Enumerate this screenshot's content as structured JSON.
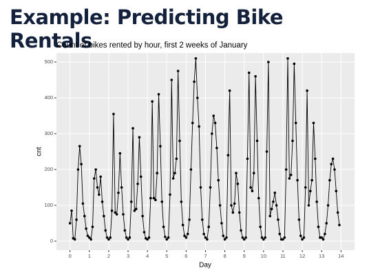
{
  "slide": {
    "title": "Example: Predicting Bike Rentals"
  },
  "chart_data": {
    "type": "line",
    "title": "Count of bikes rented by hour, first 2 weeks of January",
    "xlabel": "Day",
    "ylabel": "cnt",
    "color": "#000000",
    "grid": true,
    "xlim": [
      -0.7,
      14.7
    ],
    "ylim": [
      -25,
      525
    ],
    "xticks": [
      0,
      1,
      2,
      3,
      4,
      5,
      6,
      7,
      8,
      9,
      10,
      11,
      12,
      13,
      14
    ],
    "yticks": [
      0,
      100,
      200,
      300,
      400,
      500
    ],
    "x": [
      0,
      0.083,
      0.167,
      0.25,
      0.333,
      0.417,
      0.5,
      0.583,
      0.667,
      0.75,
      0.833,
      0.917,
      1,
      1.083,
      1.167,
      1.25,
      1.333,
      1.417,
      1.5,
      1.583,
      1.667,
      1.75,
      1.833,
      1.917,
      2,
      2.083,
      2.167,
      2.25,
      2.333,
      2.417,
      2.5,
      2.583,
      2.667,
      2.75,
      2.833,
      2.917,
      3,
      3.083,
      3.167,
      3.25,
      3.333,
      3.417,
      3.5,
      3.583,
      3.667,
      3.75,
      3.833,
      3.917,
      4,
      4.083,
      4.167,
      4.25,
      4.333,
      4.417,
      4.5,
      4.583,
      4.667,
      4.75,
      4.833,
      4.917,
      5,
      5.083,
      5.167,
      5.25,
      5.333,
      5.417,
      5.5,
      5.583,
      5.667,
      5.75,
      5.833,
      5.917,
      6,
      6.083,
      6.167,
      6.25,
      6.333,
      6.417,
      6.5,
      6.583,
      6.667,
      6.75,
      6.833,
      6.917,
      7,
      7.083,
      7.167,
      7.25,
      7.333,
      7.417,
      7.5,
      7.583,
      7.667,
      7.75,
      7.833,
      7.917,
      8,
      8.083,
      8.167,
      8.25,
      8.333,
      8.417,
      8.5,
      8.583,
      8.667,
      8.75,
      8.833,
      8.917,
      9,
      9.083,
      9.167,
      9.25,
      9.333,
      9.417,
      9.5,
      9.583,
      9.667,
      9.75,
      9.833,
      9.917,
      10,
      10.083,
      10.167,
      10.25,
      10.333,
      10.417,
      10.5,
      10.583,
      10.667,
      10.75,
      10.833,
      10.917,
      11,
      11.083,
      11.167,
      11.25,
      11.333,
      11.417,
      11.5,
      11.583,
      11.667,
      11.75,
      11.833,
      11.917,
      12,
      12.083,
      12.167,
      12.25,
      12.333,
      12.417,
      12.5,
      12.583,
      12.667,
      12.75,
      12.833,
      12.917,
      13,
      13.083,
      13.167,
      13.25,
      13.333,
      13.417,
      13.5,
      13.583,
      13.667,
      13.75,
      13.833,
      13.917
    ],
    "values": [
      50,
      85,
      8,
      5,
      60,
      200,
      265,
      215,
      105,
      70,
      35,
      15,
      10,
      5,
      40,
      175,
      200,
      150,
      130,
      180,
      110,
      70,
      30,
      10,
      5,
      10,
      85,
      355,
      80,
      75,
      135,
      245,
      150,
      75,
      30,
      10,
      5,
      10,
      110,
      315,
      85,
      90,
      160,
      290,
      180,
      70,
      25,
      8,
      5,
      10,
      120,
      390,
      120,
      115,
      190,
      410,
      265,
      110,
      40,
      12,
      5,
      10,
      130,
      450,
      175,
      190,
      230,
      475,
      280,
      110,
      45,
      15,
      10,
      20,
      60,
      200,
      330,
      445,
      510,
      400,
      320,
      150,
      60,
      20,
      10,
      5,
      40,
      150,
      300,
      350,
      330,
      260,
      170,
      100,
      50,
      15,
      5,
      10,
      240,
      420,
      100,
      80,
      105,
      190,
      160,
      80,
      30,
      10,
      5,
      10,
      230,
      470,
      150,
      140,
      190,
      460,
      280,
      120,
      40,
      10,
      5,
      10,
      250,
      500,
      70,
      90,
      110,
      135,
      100,
      60,
      20,
      5,
      5,
      10,
      200,
      510,
      175,
      185,
      280,
      495,
      330,
      170,
      60,
      15,
      5,
      10,
      150,
      420,
      100,
      140,
      170,
      330,
      230,
      110,
      40,
      10,
      10,
      5,
      20,
      50,
      100,
      170,
      215,
      230,
      200,
      140,
      80,
      45
    ]
  }
}
